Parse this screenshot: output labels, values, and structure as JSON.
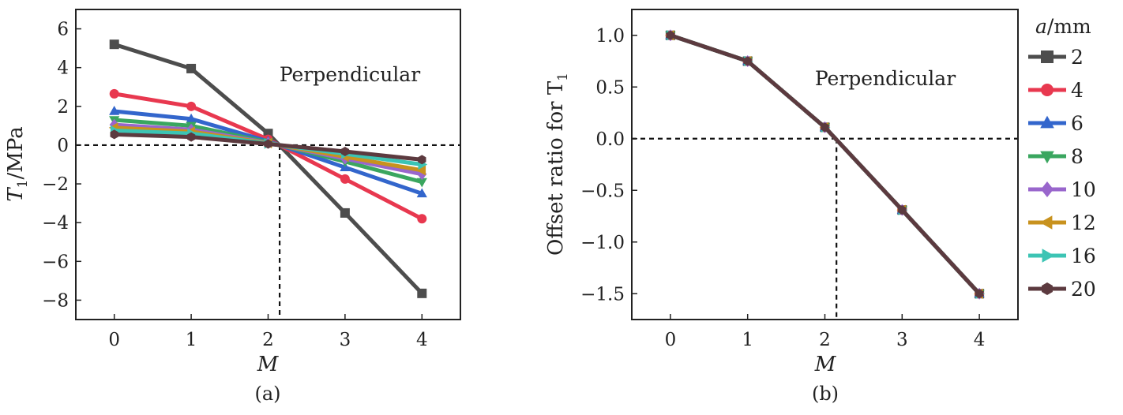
{
  "chart_data": [
    {
      "type": "line",
      "panel": "(a)",
      "annotation": "Perpendicular",
      "xlabel": "M",
      "ylabel_main": "T",
      "ylabel_sub": "1",
      "ylabel_unit": "/MPa",
      "xlim": [
        -0.5,
        4.5
      ],
      "ylim": [
        -9,
        7
      ],
      "xticks": [
        0,
        1,
        2,
        3,
        4
      ],
      "yticks": [
        -8,
        -6,
        -4,
        -2,
        0,
        2,
        4,
        6
      ],
      "ytick_labels": [
        "−8",
        "−6",
        "−4",
        "−2",
        "0",
        "2",
        "4",
        "6"
      ],
      "zero_crossing_x": 2.15,
      "x": [
        0,
        1,
        2,
        3,
        4
      ],
      "series": [
        {
          "name": "2",
          "values": [
            5.2,
            3.95,
            0.6,
            -3.5,
            -7.65
          ]
        },
        {
          "name": "4",
          "values": [
            2.65,
            2.0,
            0.3,
            -1.75,
            -3.8
          ]
        },
        {
          "name": "6",
          "values": [
            1.75,
            1.35,
            0.2,
            -1.15,
            -2.5
          ]
        },
        {
          "name": "8",
          "values": [
            1.3,
            1.0,
            0.15,
            -0.85,
            -1.9
          ]
        },
        {
          "name": "10",
          "values": [
            1.05,
            0.8,
            0.12,
            -0.7,
            -1.5
          ]
        },
        {
          "name": "12",
          "values": [
            0.9,
            0.7,
            0.1,
            -0.6,
            -1.3
          ]
        },
        {
          "name": "16",
          "values": [
            0.75,
            0.6,
            0.08,
            -0.45,
            -1.0
          ]
        },
        {
          "name": "20",
          "values": [
            0.55,
            0.42,
            0.06,
            -0.33,
            -0.75
          ]
        }
      ]
    },
    {
      "type": "line",
      "panel": "(b)",
      "annotation": "Perpendicular",
      "xlabel": "M",
      "ylabel_main": "Offset ratio for T",
      "ylabel_sub": "1",
      "xlim": [
        -0.5,
        4.5
      ],
      "ylim": [
        -1.75,
        1.25
      ],
      "xticks": [
        0,
        1,
        2,
        3,
        4
      ],
      "yticks": [
        -1.5,
        -1.0,
        -0.5,
        0.0,
        0.5,
        1.0
      ],
      "ytick_labels": [
        "−1.5",
        "−1.0",
        "−0.5",
        "0.0",
        "0.5",
        "1.0"
      ],
      "zero_crossing_x": 2.15,
      "x": [
        0,
        1,
        2,
        3,
        4
      ],
      "series": [
        {
          "name": "2",
          "values": [
            1.0,
            0.75,
            0.11,
            -0.69,
            -1.5
          ]
        },
        {
          "name": "4",
          "values": [
            1.0,
            0.75,
            0.11,
            -0.69,
            -1.5
          ]
        },
        {
          "name": "6",
          "values": [
            1.0,
            0.75,
            0.11,
            -0.69,
            -1.5
          ]
        },
        {
          "name": "8",
          "values": [
            1.0,
            0.75,
            0.11,
            -0.69,
            -1.5
          ]
        },
        {
          "name": "10",
          "values": [
            1.0,
            0.75,
            0.11,
            -0.69,
            -1.5
          ]
        },
        {
          "name": "12",
          "values": [
            1.0,
            0.75,
            0.11,
            -0.69,
            -1.5
          ]
        },
        {
          "name": "16",
          "values": [
            1.0,
            0.75,
            0.11,
            -0.69,
            -1.5
          ]
        },
        {
          "name": "20",
          "values": [
            1.0,
            0.75,
            0.11,
            -0.69,
            -1.5
          ]
        }
      ]
    }
  ],
  "legend": {
    "title_var": "a",
    "title_unit": "/mm",
    "placement": "right",
    "entries": [
      {
        "label": "2",
        "color": "#4d4d4d",
        "marker": "square"
      },
      {
        "label": "4",
        "color": "#e8384f",
        "marker": "circle"
      },
      {
        "label": "6",
        "color": "#3366cc",
        "marker": "triangle-up"
      },
      {
        "label": "8",
        "color": "#3aa65f",
        "marker": "triangle-down"
      },
      {
        "label": "10",
        "color": "#9966cc",
        "marker": "diamond"
      },
      {
        "label": "12",
        "color": "#c8921e",
        "marker": "triangle-left"
      },
      {
        "label": "16",
        "color": "#3cc4b4",
        "marker": "triangle-right"
      },
      {
        "label": "20",
        "color": "#5c3a3f",
        "marker": "hexagon"
      }
    ]
  }
}
